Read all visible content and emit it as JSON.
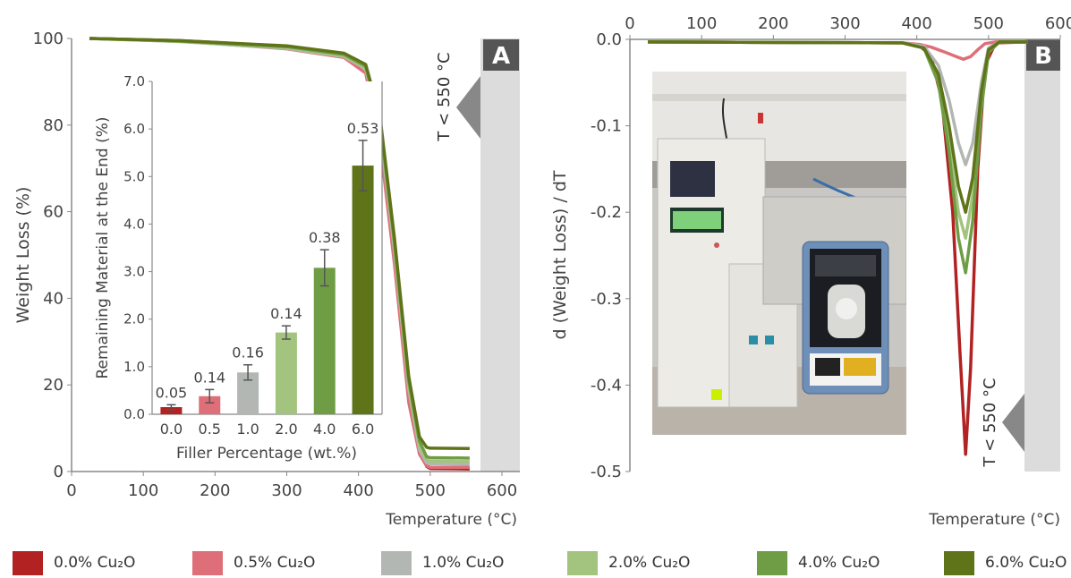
{
  "colors": {
    "s0": "#b22222",
    "s05": "#de6f78",
    "s1": "#b3b7b4",
    "s2": "#a3c47e",
    "s4": "#6f9d45",
    "s6": "#5f7419",
    "region": "#dcdcdc",
    "arrow": "#888888"
  },
  "legend": {
    "items": [
      {
        "label": "0.0% Cu₂O",
        "color": "#b22222"
      },
      {
        "label": "0.5% Cu₂O",
        "color": "#de6f78"
      },
      {
        "label": "1.0% Cu₂O",
        "color": "#b3b7b4"
      },
      {
        "label": "2.0% Cu₂O",
        "color": "#a3c47e"
      },
      {
        "label": "4.0% Cu₂O",
        "color": "#6f9d45"
      },
      {
        "label": "6.0% Cu₂O",
        "color": "#5f7419"
      }
    ]
  },
  "chart_data": [
    {
      "type": "line",
      "panel_label": "A",
      "xlabel": "Temperature (°C)",
      "ylabel": "Weight Loss (%)",
      "xlim": [
        0,
        600
      ],
      "ylim": [
        0,
        100
      ],
      "xticks": [
        0,
        100,
        200,
        300,
        400,
        500,
        600
      ],
      "yticks": [
        0,
        20,
        40,
        60,
        80,
        100
      ],
      "annotation": "T < 550 °C",
      "shaded_region": [
        555,
        600
      ],
      "series": [
        {
          "name": "0.0% Cu₂O",
          "x": [
            25,
            150,
            300,
            380,
            410,
            430,
            450,
            470,
            485,
            495,
            500,
            555
          ],
          "y": [
            100,
            99.5,
            98.2,
            96.3,
            93.5,
            80,
            52,
            20,
            5,
            1.2,
            0.7,
            0.6
          ]
        },
        {
          "name": "0.5% Cu₂O",
          "x": [
            25,
            150,
            300,
            380,
            410,
            430,
            450,
            470,
            485,
            495,
            500,
            555
          ],
          "y": [
            100,
            99.4,
            97.6,
            95.6,
            92,
            76,
            48,
            16,
            4,
            1.3,
            1.0,
            1.0
          ]
        },
        {
          "name": "1.0% Cu₂O",
          "x": [
            25,
            150,
            300,
            380,
            410,
            430,
            450,
            470,
            485,
            495,
            500,
            555
          ],
          "y": [
            100,
            99.3,
            97.7,
            95.8,
            93,
            79,
            51,
            19,
            5,
            2.0,
            1.8,
            1.7
          ]
        },
        {
          "name": "2.0% Cu₂O",
          "x": [
            25,
            150,
            300,
            380,
            410,
            430,
            450,
            470,
            485,
            495,
            500,
            555
          ],
          "y": [
            100,
            99.3,
            97.9,
            96,
            93.2,
            80,
            52,
            20,
            6,
            2.6,
            2.4,
            2.3
          ]
        },
        {
          "name": "4.0% Cu₂O",
          "x": [
            25,
            150,
            300,
            380,
            410,
            430,
            450,
            470,
            485,
            495,
            500,
            555
          ],
          "y": [
            100,
            99.4,
            98.1,
            96.3,
            93.6,
            81,
            53,
            21,
            7,
            3.4,
            3.2,
            3.1
          ]
        },
        {
          "name": "6.0% Cu₂O",
          "x": [
            25,
            150,
            300,
            380,
            410,
            430,
            450,
            470,
            485,
            495,
            500,
            555
          ],
          "y": [
            100,
            99.5,
            98.3,
            96.6,
            94,
            82,
            54,
            22,
            8,
            5.6,
            5.4,
            5.3
          ]
        }
      ]
    },
    {
      "type": "bar",
      "role": "inset",
      "xlabel": "Filler Percentage (wt.%)",
      "ylabel": "Remaining Material at the End (%)",
      "ylim": [
        0,
        7
      ],
      "yticks": [
        "0.0",
        "1.0",
        "2.0",
        "3.0",
        "4.0",
        "5.0",
        "6.0",
        "7.0"
      ],
      "categories": [
        "0.0",
        "0.5",
        "1.0",
        "2.0",
        "4.0",
        "6.0"
      ],
      "values": [
        0.15,
        0.38,
        0.88,
        1.72,
        3.08,
        5.23
      ],
      "error": [
        0.05,
        0.14,
        0.16,
        0.14,
        0.38,
        0.53
      ],
      "error_labels": [
        "0.05",
        "0.14",
        "0.16",
        "0.14",
        "0.38",
        "0.53"
      ]
    },
    {
      "type": "line",
      "panel_label": "B",
      "xlabel": "Temperature (°C)",
      "ylabel": "d (Weight Loss) / dT",
      "xlim": [
        0,
        600
      ],
      "ylim": [
        -0.5,
        0
      ],
      "xticks": [
        0,
        100,
        200,
        300,
        400,
        500,
        600
      ],
      "yticks": [
        "0.0",
        "-0.1",
        "-0.2",
        "-0.3",
        "-0.4",
        "-0.5"
      ],
      "x_axis_position": "top",
      "annotation": "T < 550 °C",
      "shaded_region": [
        555,
        600
      ],
      "series": [
        {
          "name": "0.0% Cu₂O",
          "x": [
            25,
            380,
            405,
            420,
            435,
            450,
            460,
            468,
            475,
            485,
            495,
            510,
            555
          ],
          "y": [
            -0.003,
            -0.004,
            -0.008,
            -0.02,
            -0.07,
            -0.2,
            -0.36,
            -0.48,
            -0.38,
            -0.15,
            -0.03,
            -0.004,
            -0.003
          ]
        },
        {
          "name": "0.5% Cu₂O",
          "x": [
            25,
            380,
            405,
            420,
            440,
            455,
            465,
            475,
            485,
            495,
            510,
            555
          ],
          "y": [
            -0.003,
            -0.004,
            -0.006,
            -0.009,
            -0.015,
            -0.02,
            -0.023,
            -0.02,
            -0.012,
            -0.005,
            -0.003,
            -0.003
          ]
        },
        {
          "name": "1.0% Cu₂O",
          "x": [
            25,
            380,
            410,
            430,
            445,
            458,
            468,
            478,
            490,
            500,
            515,
            555
          ],
          "y": [
            -0.003,
            -0.004,
            -0.008,
            -0.03,
            -0.07,
            -0.12,
            -0.145,
            -0.12,
            -0.05,
            -0.01,
            -0.003,
            -0.003
          ]
        },
        {
          "name": "2.0% Cu₂O",
          "x": [
            25,
            380,
            410,
            430,
            445,
            458,
            468,
            478,
            490,
            500,
            515,
            555
          ],
          "y": [
            -0.003,
            -0.004,
            -0.01,
            -0.05,
            -0.12,
            -0.2,
            -0.23,
            -0.18,
            -0.07,
            -0.015,
            -0.003,
            -0.003
          ]
        },
        {
          "name": "4.0% Cu₂O",
          "x": [
            25,
            380,
            410,
            430,
            445,
            458,
            468,
            478,
            490,
            500,
            515,
            555
          ],
          "y": [
            -0.003,
            -0.004,
            -0.01,
            -0.05,
            -0.13,
            -0.23,
            -0.27,
            -0.21,
            -0.08,
            -0.015,
            -0.003,
            -0.003
          ]
        },
        {
          "name": "6.0% Cu₂O",
          "x": [
            25,
            380,
            410,
            430,
            445,
            458,
            468,
            478,
            490,
            500,
            515,
            555
          ],
          "y": [
            -0.003,
            -0.004,
            -0.01,
            -0.04,
            -0.1,
            -0.17,
            -0.2,
            -0.16,
            -0.06,
            -0.012,
            -0.003,
            -0.003
          ]
        }
      ]
    }
  ]
}
